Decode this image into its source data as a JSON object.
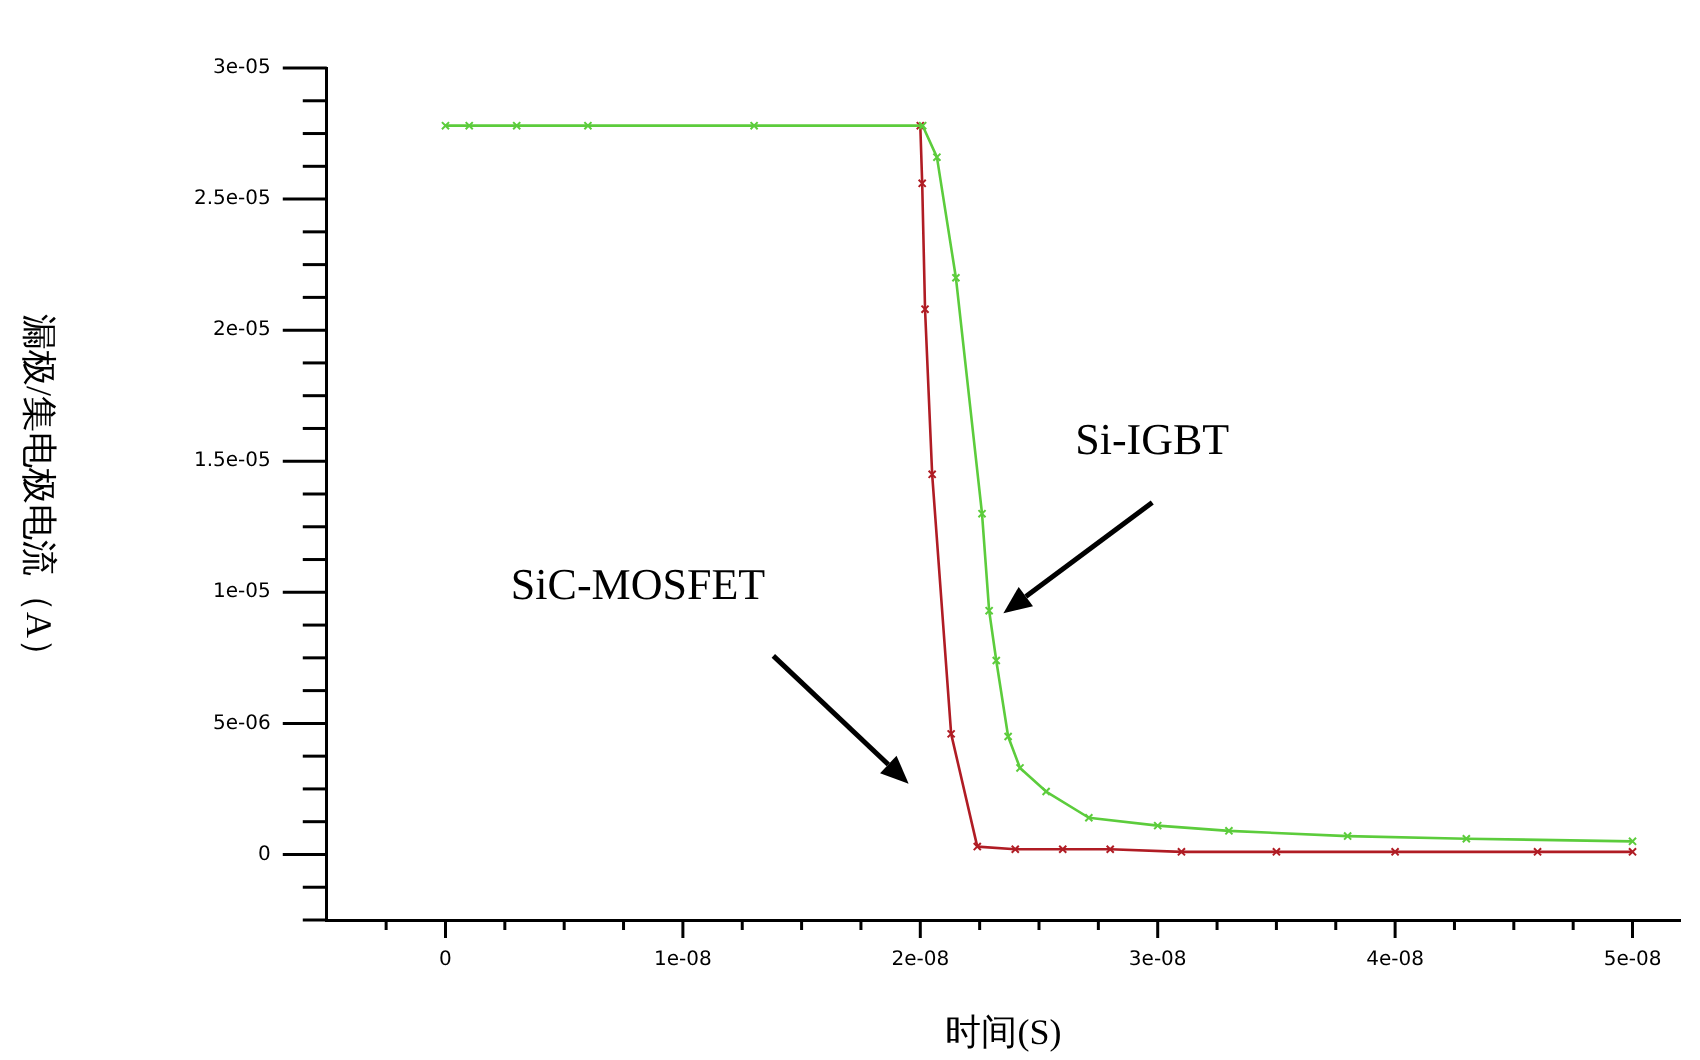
{
  "chart_data": {
    "type": "line",
    "xlabel": "时间(S)",
    "ylabel": "漏极/集电极电流（A）",
    "xlim": [
      -5e-09,
      5.2e-08
    ],
    "xticks": [
      {
        "value": -2.5e-09,
        "label": null
      },
      {
        "value": 0,
        "label": "0"
      },
      {
        "value": 2.5e-09,
        "label": null
      },
      {
        "value": 5e-09,
        "label": null
      },
      {
        "value": 7.5e-09,
        "label": null
      },
      {
        "value": 1e-08,
        "label": "1e-08"
      },
      {
        "value": 1.25e-08,
        "label": null
      },
      {
        "value": 1.5e-08,
        "label": null
      },
      {
        "value": 1.75e-08,
        "label": null
      },
      {
        "value": 2e-08,
        "label": "2e-08"
      },
      {
        "value": 2.25e-08,
        "label": null
      },
      {
        "value": 2.5e-08,
        "label": null
      },
      {
        "value": 2.75e-08,
        "label": null
      },
      {
        "value": 3e-08,
        "label": "3e-08"
      },
      {
        "value": 3.25e-08,
        "label": null
      },
      {
        "value": 3.5e-08,
        "label": null
      },
      {
        "value": 3.75e-08,
        "label": null
      },
      {
        "value": 4e-08,
        "label": "4e-08"
      },
      {
        "value": 4.25e-08,
        "label": null
      },
      {
        "value": 4.5e-08,
        "label": null
      },
      {
        "value": 4.75e-08,
        "label": null
      },
      {
        "value": 5e-08,
        "label": "5e-08"
      }
    ],
    "ylim": [
      -2.5e-06,
      3e-05
    ],
    "yticks": [
      {
        "value": -2.5e-06,
        "label": null
      },
      {
        "value": -1.25e-06,
        "label": null
      },
      {
        "value": 0,
        "label": "0"
      },
      {
        "value": 1.25e-06,
        "label": null
      },
      {
        "value": 2.5e-06,
        "label": null
      },
      {
        "value": 3.75e-06,
        "label": null
      },
      {
        "value": 5e-06,
        "label": "5e-06"
      },
      {
        "value": 6.25e-06,
        "label": null
      },
      {
        "value": 7.5e-06,
        "label": null
      },
      {
        "value": 8.75e-06,
        "label": null
      },
      {
        "value": 1e-05,
        "label": "1e-05"
      },
      {
        "value": 1.125e-05,
        "label": null
      },
      {
        "value": 1.25e-05,
        "label": null
      },
      {
        "value": 1.375e-05,
        "label": null
      },
      {
        "value": 1.5e-05,
        "label": "1.5e-05"
      },
      {
        "value": 1.625e-05,
        "label": null
      },
      {
        "value": 1.75e-05,
        "label": null
      },
      {
        "value": 1.875e-05,
        "label": null
      },
      {
        "value": 2e-05,
        "label": "2e-05"
      },
      {
        "value": 2.125e-05,
        "label": null
      },
      {
        "value": 2.25e-05,
        "label": null
      },
      {
        "value": 2.375e-05,
        "label": null
      },
      {
        "value": 2.5e-05,
        "label": "2.5e-05"
      },
      {
        "value": 2.625e-05,
        "label": null
      },
      {
        "value": 2.75e-05,
        "label": null
      },
      {
        "value": 2.875e-05,
        "label": null
      },
      {
        "value": 3e-05,
        "label": "3e-05"
      }
    ],
    "grid": false,
    "legend": false,
    "marker": "cross",
    "line_style": "solid",
    "series": [
      {
        "color": "#b01c24",
        "x": [
          2e-08,
          2.008e-08,
          2.02e-08,
          2.05e-08,
          2.13e-08,
          2.24e-08,
          2.4e-08,
          2.6e-08,
          2.8e-08,
          3.1e-08,
          3.5e-08,
          4e-08,
          4.6e-08,
          5e-08
        ],
        "values": [
          2.78e-05,
          2.56e-05,
          2.08e-05,
          1.45e-05,
          4.6e-06,
          3e-07,
          2e-07,
          2e-07,
          2e-07,
          1e-07,
          1e-07,
          1e-07,
          1e-07,
          1e-07
        ]
      },
      {
        "color": "#5ccc3c",
        "x": [
          0,
          1e-09,
          3e-09,
          6e-09,
          1.3e-08,
          2.01e-08,
          2.07e-08,
          2.15e-08,
          2.26e-08,
          2.29e-08,
          2.32e-08,
          2.37e-08,
          2.42e-08,
          2.53e-08,
          2.71e-08,
          3e-08,
          3.3e-08,
          3.8e-08,
          4.3e-08,
          5e-08
        ],
        "values": [
          2.78e-05,
          2.78e-05,
          2.78e-05,
          2.78e-05,
          2.78e-05,
          2.78e-05,
          2.66e-05,
          2.2e-05,
          1.3e-05,
          9.3e-06,
          7.4e-06,
          4.5e-06,
          3.3e-06,
          2.4e-06,
          1.4e-06,
          1.1e-06,
          9e-07,
          7e-07,
          6e-07,
          5e-07
        ]
      }
    ],
    "annotations": [
      "Si-IGBT",
      "SiC-MOSFET"
    ]
  }
}
